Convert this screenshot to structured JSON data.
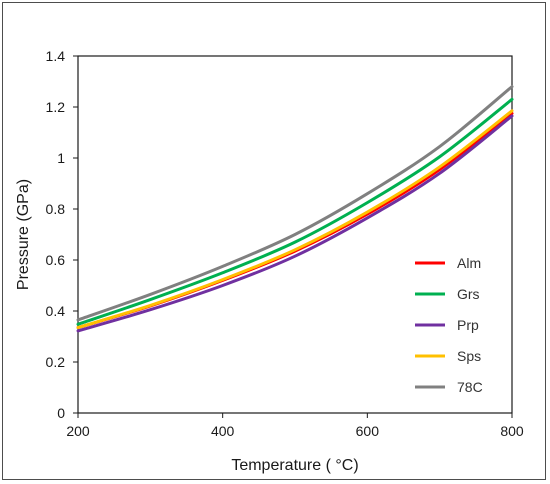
{
  "chart_data": {
    "type": "line",
    "xlabel": "Temperature ( °C)",
    "ylabel": "Pressure (GPa)",
    "xlim": [
      200,
      800
    ],
    "ylim": [
      0,
      1.4
    ],
    "xticks": [
      200,
      400,
      600,
      800
    ],
    "yticks": [
      0,
      0.2,
      0.4,
      0.6,
      0.8,
      1,
      1.2,
      1.4
    ],
    "grid": false,
    "legend_position": "lower-right",
    "x": [
      200,
      300,
      400,
      500,
      600,
      700,
      800
    ],
    "series": [
      {
        "name": "Alm",
        "color": "#ff0000",
        "values": [
          0.335,
          0.42,
          0.52,
          0.635,
          0.78,
          0.955,
          1.175
        ]
      },
      {
        "name": "Grs",
        "color": "#00b050",
        "values": [
          0.348,
          0.445,
          0.55,
          0.67,
          0.825,
          1.005,
          1.23
        ]
      },
      {
        "name": "Prp",
        "color": "#7030a0",
        "values": [
          0.322,
          0.405,
          0.5,
          0.615,
          0.765,
          0.94,
          1.165
        ]
      },
      {
        "name": "Sps",
        "color": "#ffc000",
        "values": [
          0.335,
          0.422,
          0.523,
          0.64,
          0.788,
          0.965,
          1.185
        ]
      },
      {
        "name": "78C",
        "color": "#808080",
        "values": [
          0.365,
          0.465,
          0.575,
          0.7,
          0.86,
          1.045,
          1.28
        ]
      }
    ]
  }
}
